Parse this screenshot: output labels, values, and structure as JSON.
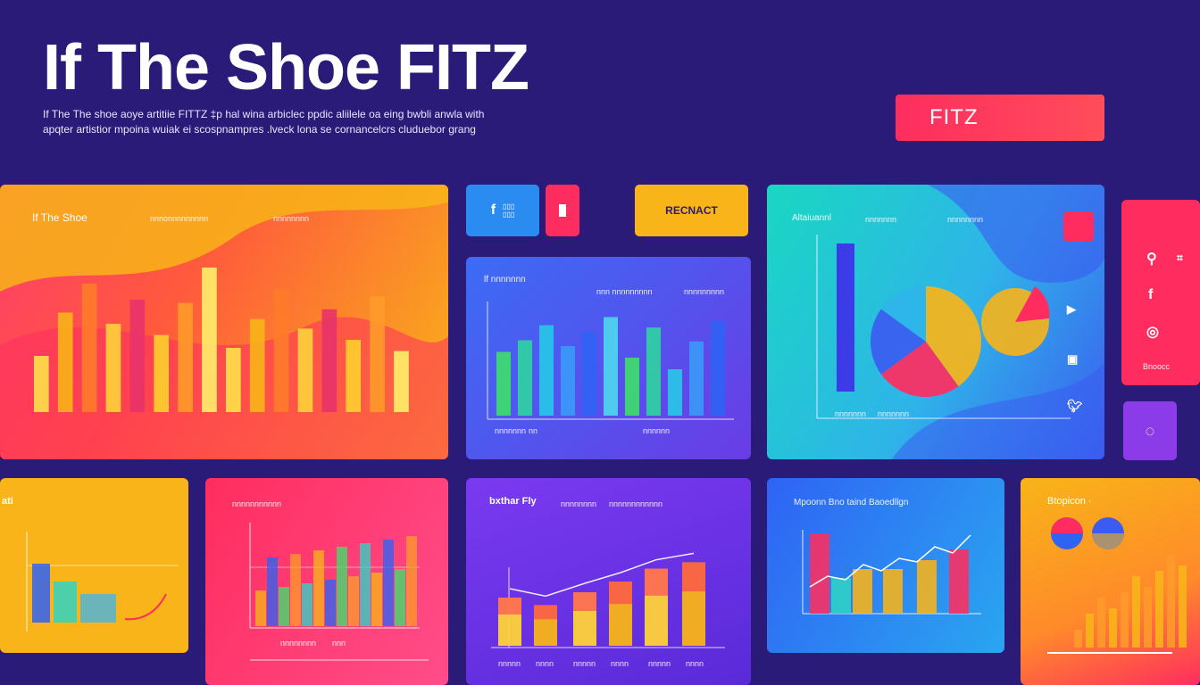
{
  "header": {
    "title": "If  The Shoe FITZ",
    "subtitle_line1": "If The The shoe aoye artitiie FITTZ ‡p hal wina arbiclec ppdic aliilele oa eing bwbli anwla with",
    "subtitle_line2": "apqter artistior mpoina wuiak ei scospnampres .lveck lona se cornancelcrs  cluduebor grang",
    "fitz_button": "FITZ"
  },
  "toolbar": {
    "react_button": "RECNACT"
  },
  "card_left_top": {
    "title": "If The Shoe",
    "header_right": "nnnonnnnnnnnn",
    "header_right2": "nnnnnnnn"
  },
  "card_mid_top": {
    "title": "lf  nnnnnnn",
    "header_mid": "nnn nnnnnnnnn",
    "header_right": "nnnnnnnnn",
    "x_labels": [
      "nnnnnnn",
      "nn",
      "nnnnnn"
    ]
  },
  "card_teal": {
    "title": "Altaiuannl",
    "header_mid": "nnnnnnn",
    "header_right": "nnnnnnnn",
    "x_labels": [
      "nnnnnnn",
      "nnnnnnn"
    ]
  },
  "side_panel": {
    "label": "Bnoocc",
    "icons": [
      "search-icon",
      "link-icon",
      "facebook-icon",
      "share-icon"
    ]
  },
  "card_bottom_1": {
    "title": "ati"
  },
  "card_bottom_2": {
    "title": "nnnnnnnnnnn",
    "x_labels": [
      "nnnnnnnn",
      "nnn"
    ]
  },
  "card_bottom_3": {
    "title": "bxthar Fly",
    "header_mid": "nnnnnnnn",
    "header_right": "nnnnnnnnnnnn",
    "x_labels": [
      "nnnnn",
      "nnnn",
      "nnnnn",
      "nnnn",
      "nnnnn",
      "nnnn"
    ]
  },
  "card_bottom_4": {
    "title": "Mpoonn  Bno  taind  Baoedllgn"
  },
  "card_bottom_5": {
    "title": "Btopicon ·"
  },
  "colors": {
    "background": "#2a1b78",
    "accent_red": "#ff2d5f",
    "accent_orange": "#f8b418",
    "blue": "#2f63f4",
    "teal": "#20d4c4",
    "purple": "#8b3be8"
  },
  "chart_data": [
    {
      "type": "bar",
      "title": "If The Shoe",
      "values": [
        35,
        62,
        80,
        55,
        70,
        48,
        68,
        90,
        40,
        58,
        77,
        52,
        64,
        45,
        72,
        38
      ]
    },
    {
      "type": "bar",
      "title": "",
      "values": [
        55,
        65,
        78,
        60,
        72,
        85,
        50,
        76,
        40,
        64,
        82
      ]
    },
    {
      "type": "pie",
      "title": "Altaiuannl",
      "values": [
        40,
        25,
        20,
        15
      ]
    },
    {
      "type": "bar",
      "title": "bxthar Fly",
      "values": [
        45,
        38,
        50,
        60,
        72,
        78
      ]
    },
    {
      "type": "line",
      "title": "",
      "values": [
        30,
        42,
        38,
        55,
        48,
        62,
        58,
        75,
        68,
        88
      ]
    }
  ]
}
